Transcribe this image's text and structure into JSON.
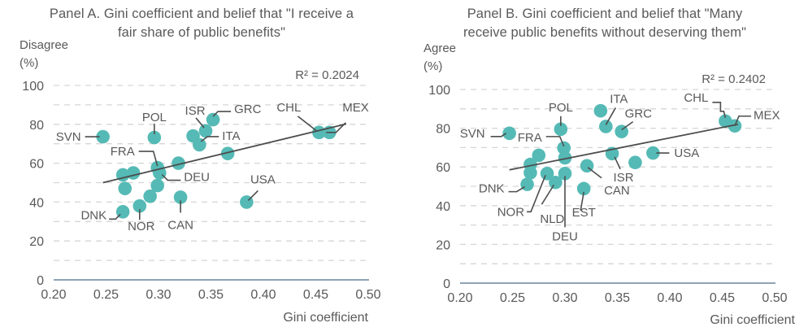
{
  "chart_data": [
    {
      "id": "panel-a",
      "type": "scatter",
      "title": "Panel A. Gini coefficient and belief that \"I receive a fair share of public benefits\"",
      "title_lines": [
        "Panel A. Gini coefficient and belief that \"I receive a",
        "fair share of public benefits\""
      ],
      "ylabel_lines": [
        "Disagree",
        "(%)"
      ],
      "xlabel": "Gini coefficient",
      "xlim": [
        0.2,
        0.5
      ],
      "ylim": [
        0,
        100
      ],
      "xticks": [
        "0.20",
        "0.25",
        "0.30",
        "0.35",
        "0.40",
        "0.45",
        "0.50"
      ],
      "yticks": [
        "0",
        "20",
        "40",
        "60",
        "80",
        "100"
      ],
      "grid": "horizontal dashed every 10",
      "r_squared_label": "R² = 0.2024",
      "trendline": {
        "x": [
          0.247,
          0.479
        ],
        "y": [
          50.0,
          80.2
        ]
      },
      "points": [
        {
          "label": "SVN",
          "x": 0.247,
          "y": 73.6
        },
        {
          "label": "POL",
          "x": 0.296,
          "y": 73.2
        },
        {
          "label": "GRC",
          "x": 0.352,
          "y": 82.4
        },
        {
          "label": "ISR",
          "x": 0.345,
          "y": 76.6
        },
        {
          "label": "",
          "x": 0.333,
          "y": 74.0
        },
        {
          "label": "ITA",
          "x": 0.339,
          "y": 69.5
        },
        {
          "label": "",
          "x": 0.366,
          "y": 65.0
        },
        {
          "label": "CHL",
          "x": 0.453,
          "y": 75.8
        },
        {
          "label": "MEX",
          "x": 0.463,
          "y": 75.8
        },
        {
          "label": "",
          "x": 0.319,
          "y": 60.0
        },
        {
          "label": "FRA",
          "x": 0.299,
          "y": 57.7
        },
        {
          "label": "DEU",
          "x": 0.301,
          "y": 55.0
        },
        {
          "label": "",
          "x": 0.266,
          "y": 54.0
        },
        {
          "label": "",
          "x": 0.276,
          "y": 55.0
        },
        {
          "label": "",
          "x": 0.268,
          "y": 47.0
        },
        {
          "label": "",
          "x": 0.299,
          "y": 48.5
        },
        {
          "label": "",
          "x": 0.292,
          "y": 43.0
        },
        {
          "label": "CAN",
          "x": 0.321,
          "y": 42.5
        },
        {
          "label": "NOR",
          "x": 0.282,
          "y": 38.0
        },
        {
          "label": "DNK",
          "x": 0.266,
          "y": 35.0
        },
        {
          "label": "USA",
          "x": 0.384,
          "y": 40.0
        }
      ]
    },
    {
      "id": "panel-b",
      "type": "scatter",
      "title": "Panel B. Gini coefficient and belief that \"Many receive public benefits without deserving them\"",
      "title_lines": [
        "Panel B. Gini coefficient and belief that \"Many",
        "receive public benefits without deserving them\""
      ],
      "ylabel_lines": [
        "Agree",
        "(%)"
      ],
      "xlabel": "Gini coefficient",
      "xlim": [
        0.2,
        0.5
      ],
      "ylim": [
        0,
        100
      ],
      "xticks": [
        "0.20",
        "0.25",
        "0.30",
        "0.35",
        "0.40",
        "0.45",
        "0.50"
      ],
      "yticks": [
        "0",
        "20",
        "40",
        "60",
        "80",
        "100"
      ],
      "grid": "horizontal dashed every 10",
      "r_squared_label": "R² = 0.2402",
      "trendline": {
        "x": [
          0.247,
          0.465
        ],
        "y": [
          58.5,
          82.0
        ]
      },
      "points": [
        {
          "label": "",
          "x": 0.334,
          "y": 89.0
        },
        {
          "label": "ITA",
          "x": 0.339,
          "y": 80.9
        },
        {
          "label": "GRC",
          "x": 0.354,
          "y": 78.3
        },
        {
          "label": "CHL",
          "x": 0.453,
          "y": 83.7
        },
        {
          "label": "MEX",
          "x": 0.462,
          "y": 81.2
        },
        {
          "label": "POL",
          "x": 0.296,
          "y": 79.5
        },
        {
          "label": "SVN",
          "x": 0.247,
          "y": 77.4
        },
        {
          "label": "FRA",
          "x": 0.299,
          "y": 69.8
        },
        {
          "label": "",
          "x": 0.3,
          "y": 64.7
        },
        {
          "label": "",
          "x": 0.275,
          "y": 66.0
        },
        {
          "label": "",
          "x": 0.267,
          "y": 61.3
        },
        {
          "label": "",
          "x": 0.267,
          "y": 57.0
        },
        {
          "label": "DNK",
          "x": 0.264,
          "y": 51.0
        },
        {
          "label": "NOR",
          "x": 0.283,
          "y": 56.6
        },
        {
          "label": "NLD",
          "x": 0.291,
          "y": 52.0
        },
        {
          "label": "DEU",
          "x": 0.3,
          "y": 56.6
        },
        {
          "label": "CAN",
          "x": 0.321,
          "y": 60.6
        },
        {
          "label": "EST",
          "x": 0.318,
          "y": 48.8
        },
        {
          "label": "ISR",
          "x": 0.345,
          "y": 66.9
        },
        {
          "label": "",
          "x": 0.367,
          "y": 62.3
        },
        {
          "label": "USA",
          "x": 0.384,
          "y": 67.2
        }
      ]
    }
  ],
  "colors": {
    "point": "#55bab5",
    "trendline": "#4d4d4d",
    "grid": "#d6d6d6",
    "axis": "#8fa3b5",
    "text": "#595959"
  }
}
